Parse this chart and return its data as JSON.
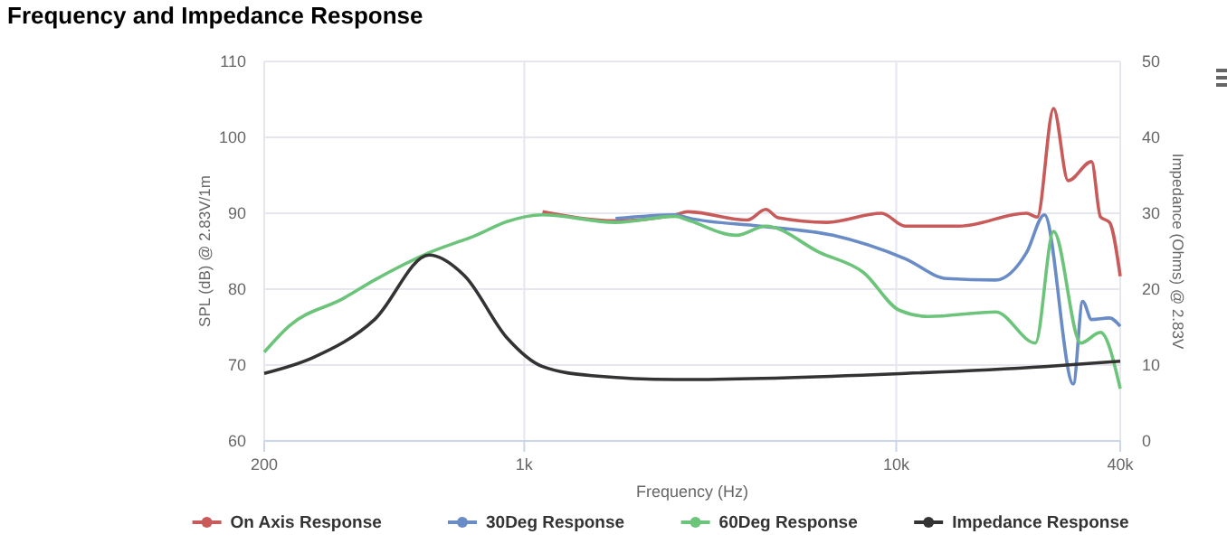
{
  "chart_data": {
    "type": "line",
    "title": "Frequency and Impedance Response",
    "xlabel": "Frequency (Hz)",
    "ylabel": "SPL (dB) @ 2.83V/1m",
    "y2label": "Impedance (Ohms) @ 2.83V",
    "log": "x",
    "xlim": [
      200,
      40000
    ],
    "xticks": [
      200,
      {
        "value": 1000,
        "label": "1k"
      },
      {
        "value": 10000,
        "label": "10k"
      },
      {
        "value": 40000,
        "label": "40k"
      }
    ],
    "ylim": [
      60,
      110
    ],
    "yticks": [
      60,
      70,
      80,
      90,
      100,
      110
    ],
    "y2lim": [
      0,
      50
    ],
    "y2ticks": [
      0,
      10,
      20,
      30,
      40,
      50
    ],
    "grid": true,
    "legend": "bottom",
    "line_style": "solid",
    "series": [
      {
        "name": "On Axis Response",
        "color": "#c85a5a",
        "x": [
          1120,
          1760,
          2550,
          2750,
          3980,
          4460,
          4820,
          6520,
          9130,
          10570,
          14780,
          22390,
          23930,
          26480,
          28970,
          33500,
          35400,
          37440,
          40000
        ],
        "values": [
          90.2,
          89.0,
          89.8,
          90.2,
          89.1,
          90.5,
          89.4,
          88.8,
          90.0,
          88.3,
          88.3,
          90.0,
          89.5,
          103.8,
          94.3,
          96.8,
          89.5,
          88.8,
          81.7
        ]
      },
      {
        "name": "30Deg Response",
        "color": "#6a8cc6",
        "x": [
          1760,
          2550,
          2750,
          4310,
          6750,
          10570,
          13670,
          18500,
          22390,
          25020,
          29930,
          31700,
          33500,
          37440,
          40000
        ],
        "values": [
          89.3,
          89.8,
          89.4,
          88.3,
          87.1,
          84.0,
          81.4,
          81.2,
          84.8,
          89.8,
          67.5,
          78.4,
          76.0,
          76.2,
          75.1
        ]
      },
      {
        "name": "60Deg Response",
        "color": "#6cc47a",
        "x": [
          200,
          234,
          327,
          396,
          555,
          742,
          898,
          1120,
          1760,
          2550,
          2750,
          3720,
          4460,
          6240,
          8160,
          10210,
          12210,
          18500,
          23660,
          26480,
          31330,
          35400,
          40000
        ],
        "values": [
          71.7,
          75.2,
          78.8,
          81.2,
          84.8,
          87.1,
          88.9,
          89.8,
          88.8,
          89.6,
          89.1,
          87.1,
          88.3,
          84.8,
          82.2,
          77.2,
          76.4,
          77.0,
          72.9,
          87.6,
          72.9,
          74.3,
          66.9
        ]
      },
      {
        "name": "Impedance Response",
        "color": "#333333",
        "axis": "y2",
        "x": [
          200,
          271,
          396,
          555,
          693,
          898,
          1120,
          1520,
          2550,
          2750,
          10570,
          25020,
          40000
        ],
        "values": [
          8.9,
          11.0,
          16.0,
          24.5,
          21.7,
          13.6,
          9.8,
          8.6,
          8.1,
          8.1,
          8.9,
          9.8,
          10.5
        ]
      }
    ]
  }
}
